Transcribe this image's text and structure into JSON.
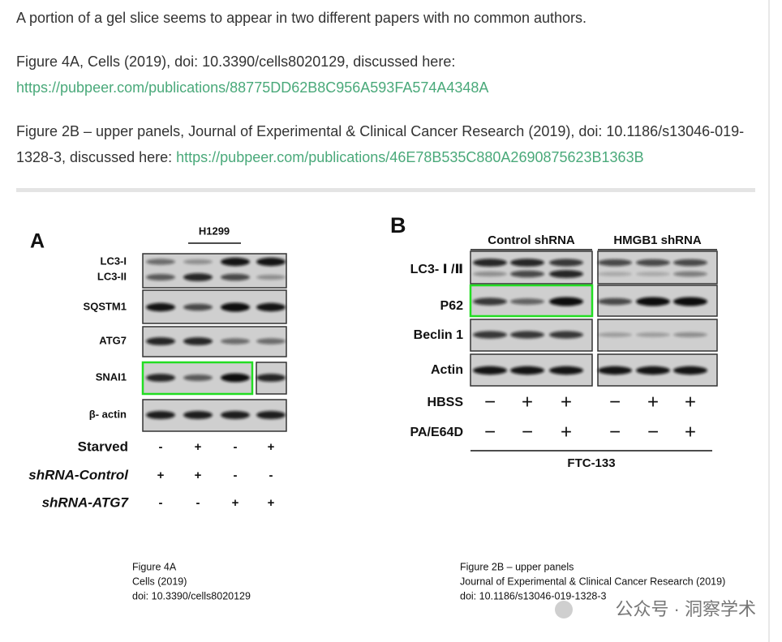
{
  "intro": "A portion of a gel slice seems to appear in two different papers with no common authors.",
  "items": [
    {
      "text": "Figure 4A, Cells (2019), doi: 10.3390/cells8020129, discussed here:",
      "link": "https://pubpeer.com/publications/88775DD62B8C956A593FA574A4348A"
    },
    {
      "text": "Figure 2B – upper panels, Journal of Experimental & Clinical Cancer Research (2019), doi: 10.1186/s13046-019-1328-3, discussed here:",
      "link": "https://pubpeer.com/publications/46E78B535C880A2690875623B1363B"
    }
  ],
  "figure_a": {
    "label": "A",
    "group": "H1299",
    "rows": [
      "LC3-I",
      "LC3-II",
      "SQSTM1",
      "ATG7",
      "SNAI1",
      "β- actin"
    ],
    "conditions": [
      {
        "name": "Starved",
        "signs": [
          "-",
          "+",
          "-",
          "+"
        ]
      },
      {
        "name": "shRNA-Control",
        "signs": [
          "+",
          "+",
          "-",
          "-"
        ]
      },
      {
        "name": "shRNA-ATG7",
        "signs": [
          "-",
          "-",
          "+",
          "+"
        ]
      }
    ]
  },
  "figure_b": {
    "label": "B",
    "groups": [
      "Control shRNA",
      "HMGB1 shRNA"
    ],
    "rows": [
      "LC3- Ⅰ /Ⅱ",
      "P62",
      "Beclin 1",
      "Actin"
    ],
    "conditions": [
      {
        "name": "HBSS",
        "signs": [
          "−",
          "+",
          "+",
          "−",
          "+",
          "+"
        ]
      },
      {
        "name": "PA/E64D",
        "signs": [
          "−",
          "−",
          "+",
          "−",
          "−",
          "+"
        ]
      }
    ],
    "footer": "FTC-133"
  },
  "captions": [
    [
      "Figure 4A",
      "Cells (2019)",
      "doi: 10.3390/cells8020129"
    ],
    [
      "Figure 2B – upper panels",
      "Journal of Experimental & Clinical Cancer Research (2019)",
      "doi: 10.1186/s13046-019-1328-3"
    ]
  ],
  "watermark": "公众号 · 洞察学术"
}
